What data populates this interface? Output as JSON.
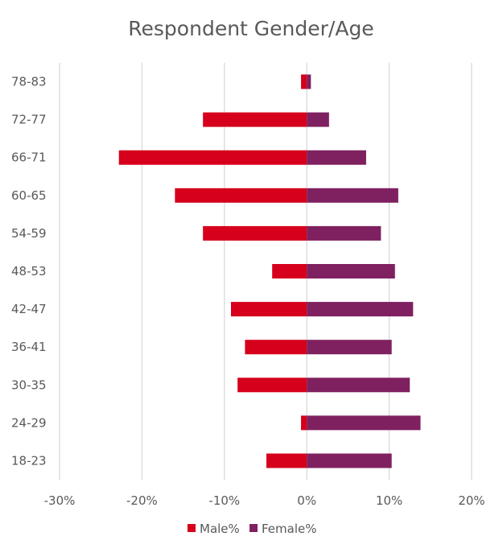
{
  "chart_data": {
    "type": "bar",
    "orientation": "horizontal",
    "title": "Respondent Gender/Age",
    "categories": [
      "18-23",
      "24-29",
      "30-35",
      "36-41",
      "42-47",
      "48-53",
      "54-59",
      "60-65",
      "66-71",
      "72-77",
      "78-83"
    ],
    "series": [
      {
        "name": "Male%",
        "color": "#d6001c",
        "values": [
          -4.9,
          -0.7,
          -8.4,
          -7.5,
          -9.2,
          -4.2,
          -12.6,
          -16.0,
          -22.8,
          -12.6,
          -0.7
        ]
      },
      {
        "name": "Female%",
        "color": "#7f2160",
        "values": [
          10.3,
          13.8,
          12.5,
          10.3,
          12.9,
          10.7,
          9.0,
          11.1,
          7.2,
          2.7,
          0.5
        ]
      }
    ],
    "xlim": [
      -30,
      20
    ],
    "xticks": [
      -30,
      -20,
      -10,
      0,
      10,
      20
    ],
    "xtick_labels": [
      "-30%",
      "-20%",
      "-10%",
      "0%",
      "10%",
      "20%"
    ],
    "grid": true,
    "legend_position": "bottom"
  }
}
